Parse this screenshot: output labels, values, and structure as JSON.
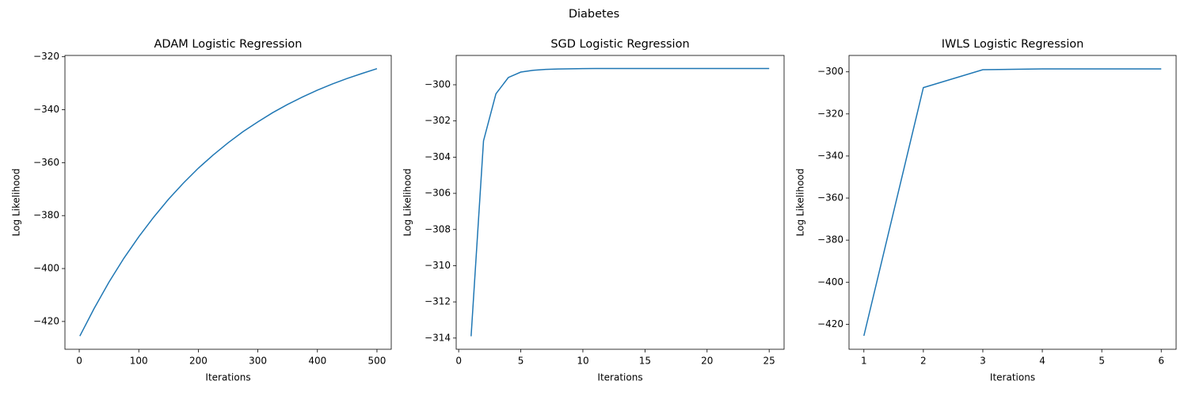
{
  "title": "Diabetes",
  "chart_data": [
    {
      "type": "line",
      "title": "ADAM Logistic Regression",
      "xlabel": "Iterations",
      "ylabel": "Log Likelihood",
      "color": "#1f77b4",
      "grid": false,
      "x": [
        1,
        25,
        50,
        75,
        100,
        125,
        150,
        175,
        200,
        225,
        250,
        275,
        300,
        325,
        350,
        375,
        400,
        425,
        450,
        475,
        500
      ],
      "values": [
        -425.5,
        -415.1,
        -405.1,
        -396.1,
        -388.0,
        -380.6,
        -373.8,
        -367.7,
        -362.1,
        -357.1,
        -352.5,
        -348.3,
        -344.6,
        -341.1,
        -338.0,
        -335.2,
        -332.6,
        -330.3,
        -328.2,
        -326.3,
        -324.5
      ],
      "xlim": [
        -24,
        524
      ],
      "ylim": [
        -430.5,
        -319.5
      ],
      "xticks": [
        0,
        100,
        200,
        300,
        400,
        500
      ],
      "yticks": [
        {
          "value": -420,
          "label": "−420"
        },
        {
          "value": -400,
          "label": "−400"
        },
        {
          "value": -380,
          "label": "−380"
        },
        {
          "value": -360,
          "label": "−360"
        },
        {
          "value": -340,
          "label": "−340"
        },
        {
          "value": -320,
          "label": "−320"
        }
      ]
    },
    {
      "type": "line",
      "title": "SGD Logistic Regression",
      "xlabel": "Iterations",
      "ylabel": "Log Likelihood",
      "color": "#1f77b4",
      "grid": false,
      "x": [
        1,
        2,
        3,
        4,
        5,
        6,
        7,
        8,
        9,
        10,
        11,
        12,
        13,
        14,
        15,
        16,
        17,
        18,
        19,
        20,
        21,
        22,
        23,
        24,
        25
      ],
      "values": [
        -313.9,
        -303.1,
        -300.5,
        -299.6,
        -299.3,
        -299.2,
        -299.15,
        -299.13,
        -299.12,
        -299.11,
        -299.1,
        -299.1,
        -299.1,
        -299.1,
        -299.1,
        -299.1,
        -299.1,
        -299.1,
        -299.1,
        -299.1,
        -299.1,
        -299.1,
        -299.1,
        -299.1,
        -299.1
      ],
      "xlim": [
        -0.2,
        26.2
      ],
      "ylim": [
        -314.62,
        -298.38
      ],
      "xticks": [
        0,
        5,
        10,
        15,
        20,
        25
      ],
      "yticks": [
        {
          "value": -314,
          "label": "−314"
        },
        {
          "value": -312,
          "label": "−312"
        },
        {
          "value": -310,
          "label": "−310"
        },
        {
          "value": -308,
          "label": "−308"
        },
        {
          "value": -306,
          "label": "−306"
        },
        {
          "value": -304,
          "label": "−304"
        },
        {
          "value": -302,
          "label": "−302"
        },
        {
          "value": -300,
          "label": "−300"
        }
      ]
    },
    {
      "type": "line",
      "title": "IWLS Logistic Regression",
      "xlabel": "Iterations",
      "ylabel": "Log Likelihood",
      "color": "#1f77b4",
      "grid": false,
      "x": [
        1,
        2,
        3,
        4,
        5,
        6
      ],
      "values": [
        -425.5,
        -307.5,
        -299.0,
        -298.6,
        -298.6,
        -298.6
      ],
      "xlim": [
        0.75,
        6.25
      ],
      "ylim": [
        -431.9,
        -292.2
      ],
      "xticks": [
        1,
        2,
        3,
        4,
        5,
        6
      ],
      "yticks": [
        {
          "value": -420,
          "label": "−420"
        },
        {
          "value": -400,
          "label": "−400"
        },
        {
          "value": -380,
          "label": "−380"
        },
        {
          "value": -360,
          "label": "−360"
        },
        {
          "value": -340,
          "label": "−340"
        },
        {
          "value": -320,
          "label": "−320"
        },
        {
          "value": -300,
          "label": "−300"
        }
      ]
    }
  ]
}
